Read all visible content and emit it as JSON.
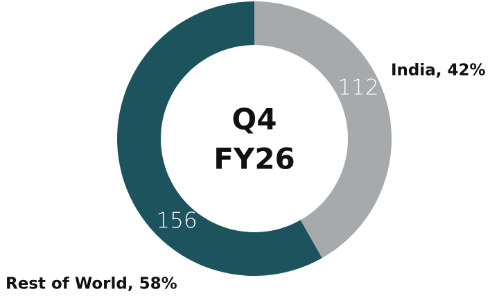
{
  "chart_data": {
    "type": "donut",
    "center_label": [
      "Q4",
      "FY26"
    ],
    "categories": [
      "India, 42%",
      "Rest of World, 58%"
    ],
    "values": [
      112,
      156
    ],
    "colors": [
      "#a7aaad",
      "#1c535c"
    ]
  }
}
